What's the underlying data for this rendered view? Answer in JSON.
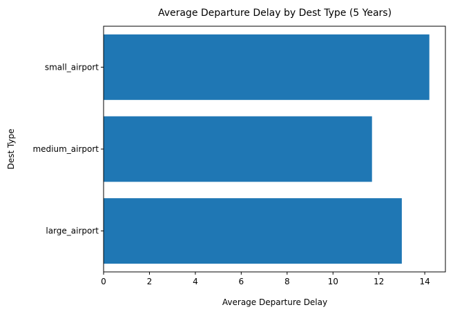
{
  "chart_data": {
    "type": "bar",
    "orientation": "horizontal",
    "title": "Average Departure Delay by Dest Type (5 Years)",
    "xlabel": "Average Departure Delay",
    "ylabel": "Dest Type",
    "categories": [
      "large_airport",
      "medium_airport",
      "small_airport"
    ],
    "values": [
      13.0,
      11.7,
      14.2
    ],
    "xlim": [
      0,
      14.9
    ],
    "xticks": [
      0,
      2,
      4,
      6,
      8,
      10,
      12,
      14
    ],
    "bar_color": "#1f77b4",
    "grid": false,
    "legend": "none"
  }
}
